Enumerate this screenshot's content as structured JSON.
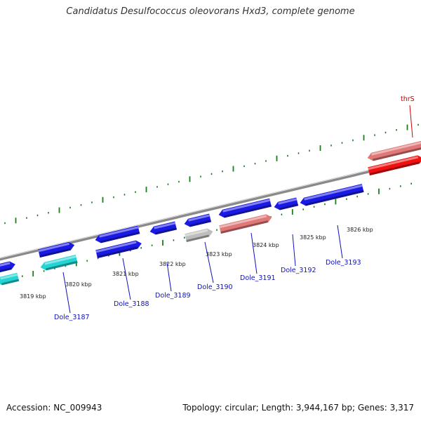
{
  "title": "Candidatus Desulfococcus oleovorans Hxd3, complete genome",
  "footer": {
    "accession": "Accession: NC_009943",
    "summary": "Topology: circular; Length: 3,944,167 bp; Genes: 3,317"
  },
  "colors": {
    "backbone": "#8a8a8a",
    "tick": "#1e7a1e",
    "gene_blue": "#1a1ae6",
    "gene_cyan": "#22d4d4",
    "gene_gray": "#bdbdbd",
    "gene_pink": "#e07878",
    "gene_red": "#f01010",
    "label_blue": "#1010c0",
    "label_red": "#cc0000"
  },
  "scale": {
    "tick_labels": [
      "3819 kbp",
      "3820 kbp",
      "3821 kbp",
      "3822 kbp",
      "3823 kbp",
      "3824 kbp",
      "3825 kbp",
      "3826 kbp"
    ]
  },
  "genes": [
    {
      "name": "",
      "color": "gene_blue",
      "strand": "+"
    },
    {
      "name": "",
      "color": "gene_cyan",
      "strand": "-"
    },
    {
      "name": "Dole_3187",
      "color": "gene_blue",
      "strand": "+"
    },
    {
      "name": "",
      "color": "gene_cyan",
      "strand": "-"
    },
    {
      "name": "",
      "color": "gene_blue",
      "strand": "-"
    },
    {
      "name": "Dole_3188",
      "color": "gene_blue",
      "strand": "+"
    },
    {
      "name": "Dole_3189",
      "color": "gene_blue",
      "strand": "-"
    },
    {
      "name": "",
      "color": "gene_blue",
      "strand": "-"
    },
    {
      "name": "Dole_3190",
      "color": "gene_gray",
      "strand": "+"
    },
    {
      "name": "",
      "color": "gene_blue",
      "strand": "-"
    },
    {
      "name": "Dole_3191",
      "color": "gene_pink",
      "strand": "+"
    },
    {
      "name": "Dole_3192",
      "color": "gene_blue",
      "strand": "-"
    },
    {
      "name": "Dole_3193",
      "color": "gene_blue",
      "strand": "-"
    },
    {
      "name": "",
      "color": "gene_pink",
      "strand": "-"
    },
    {
      "name": "thrS",
      "color": "gene_red",
      "strand": "+"
    }
  ]
}
